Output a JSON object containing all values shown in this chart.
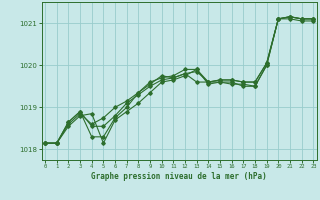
{
  "title": "Graphe pression niveau de la mer (hPa)",
  "bg_color": "#c8e8e8",
  "grid_color": "#99cccc",
  "line_color": "#2d6e2d",
  "xlim": [
    -0.3,
    23.3
  ],
  "ylim": [
    1017.75,
    1021.5
  ],
  "yticks": [
    1018,
    1019,
    1020,
    1021
  ],
  "xticks": [
    0,
    1,
    2,
    3,
    4,
    5,
    6,
    7,
    8,
    9,
    10,
    11,
    12,
    13,
    14,
    15,
    16,
    17,
    18,
    19,
    20,
    21,
    22,
    23
  ],
  "series": [
    [
      1018.15,
      1018.15,
      1018.55,
      1018.8,
      1018.85,
      1018.15,
      1018.7,
      1018.9,
      1019.1,
      1019.35,
      1019.6,
      1019.65,
      1019.75,
      1019.9,
      1019.55,
      1019.6,
      1019.6,
      1019.5,
      1019.5,
      1020.0,
      1021.1,
      1021.1,
      1021.05,
      1021.05
    ],
    [
      1018.15,
      1018.15,
      1018.6,
      1018.85,
      1018.6,
      1018.75,
      1019.0,
      1019.15,
      1019.35,
      1019.55,
      1019.75,
      1019.7,
      1019.8,
      1019.6,
      1019.6,
      1019.6,
      1019.55,
      1019.55,
      1019.5,
      1020.0,
      1021.1,
      1021.15,
      1021.1,
      1021.1
    ],
    [
      1018.15,
      1018.15,
      1018.65,
      1018.9,
      1018.55,
      1018.55,
      1018.8,
      1019.1,
      1019.3,
      1019.5,
      1019.65,
      1019.7,
      1019.8,
      1019.85,
      1019.6,
      1019.65,
      1019.65,
      1019.6,
      1019.6,
      1020.05,
      1021.1,
      1021.15,
      1021.1,
      1021.1
    ],
    [
      1018.15,
      1018.15,
      1018.65,
      1018.9,
      1018.3,
      1018.3,
      1018.75,
      1019.0,
      1019.35,
      1019.6,
      1019.7,
      1019.75,
      1019.9,
      1019.9,
      1019.6,
      1019.65,
      1019.65,
      1019.6,
      1019.6,
      1020.05,
      1021.1,
      1021.15,
      1021.1,
      1021.1
    ]
  ]
}
